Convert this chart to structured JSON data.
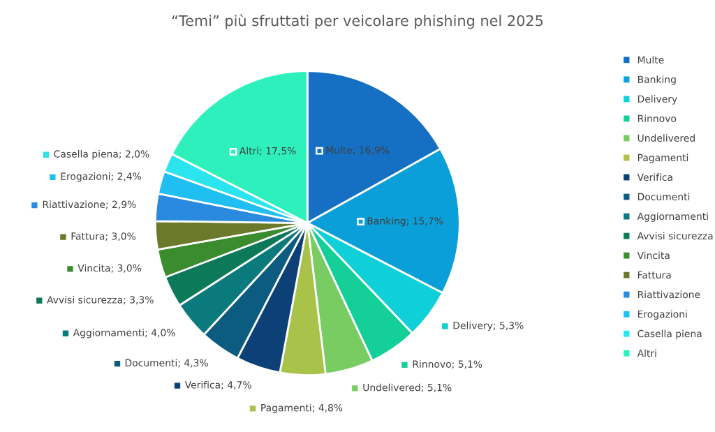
{
  "chart_data": {
    "type": "pie",
    "title": "“Temi” più sfruttati per veicolare phishing nel 2025",
    "categories": [
      "Multe",
      "Banking",
      "Delivery",
      "Rinnovo",
      "Undelivered",
      "Pagamenti",
      "Verifica",
      "Documenti",
      "Aggiornamenti",
      "Avvisi sicurezza",
      "Vincita",
      "Fattura",
      "Riattivazione",
      "Erogazioni",
      "Casella piena",
      "Altri"
    ],
    "values": [
      16.9,
      15.7,
      5.3,
      5.1,
      5.1,
      4.8,
      4.7,
      4.3,
      4.0,
      3.3,
      3.0,
      3.0,
      2.9,
      2.4,
      2.0,
      17.5
    ],
    "value_labels": [
      "Multe; 16,9%",
      "Banking; 15,7%",
      "Delivery; 5,3%",
      "Rinnovo; 5,1%",
      "Undelivered; 5,1%",
      "Pagamenti; 4,8%",
      "Verifica; 4,7%",
      "Documenti; 4,3%",
      "Aggiornamenti; 4,0%",
      "Avvisi sicurezza; 3,3%",
      "Vincita; 3,0%",
      "Fattura; 3,0%",
      "Riattivazione; 2,9%",
      "Erogazioni; 2,4%",
      "Casella piena; 2,0%",
      "Altri; 17,5%"
    ],
    "colors": [
      "#1570c4",
      "#0a9fd8",
      "#0fcfd8",
      "#14cf98",
      "#78cc62",
      "#a8c24a",
      "#0c4076",
      "#0b5c80",
      "#0b7a7c",
      "#0c7a58",
      "#3a8c2e",
      "#6a7a2a",
      "#2a8ae0",
      "#20bff2",
      "#2ae4ee",
      "#2ef0bc"
    ],
    "legend": "right"
  }
}
